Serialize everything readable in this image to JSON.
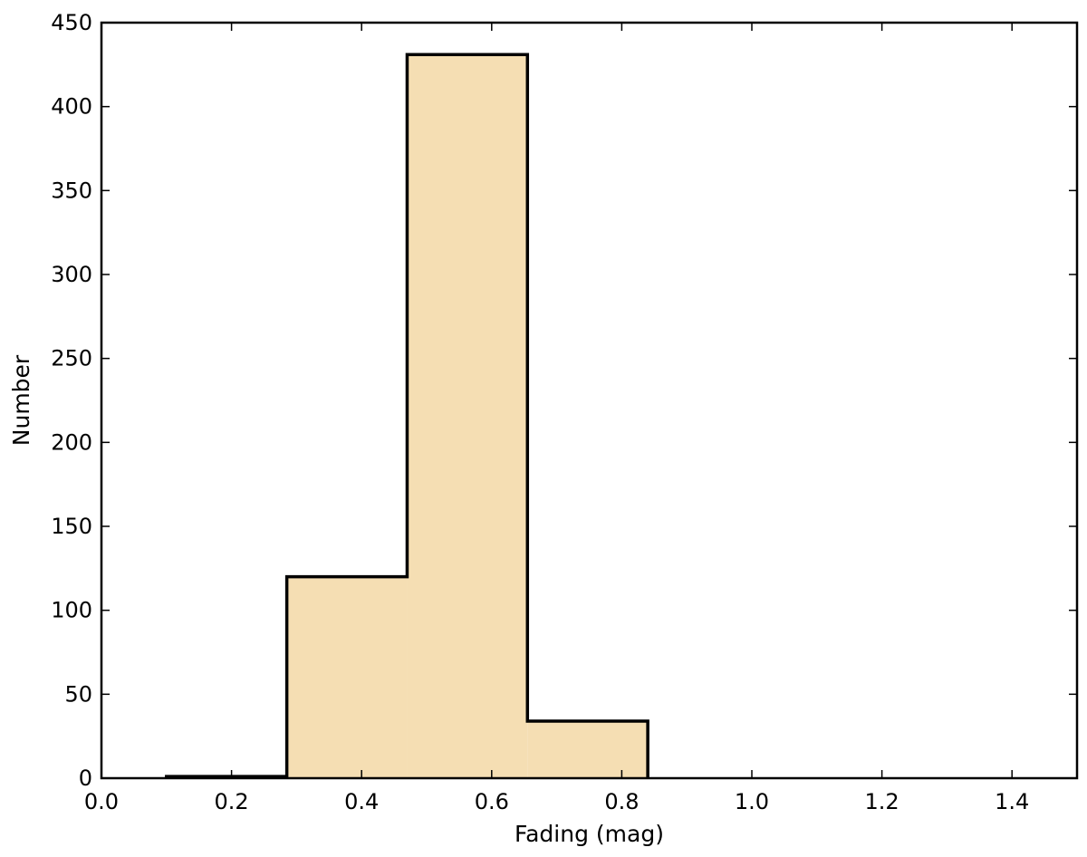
{
  "chart_data": {
    "type": "bar",
    "title": "",
    "xlabel": "Fading (mag)",
    "ylabel": "Number",
    "xlim": [
      0.0,
      1.5
    ],
    "ylim": [
      0,
      450
    ],
    "xticks": [
      "0.0",
      "0.2",
      "0.4",
      "0.6",
      "0.8",
      "1.0",
      "1.2",
      "1.4"
    ],
    "yticks": [
      "0",
      "50",
      "100",
      "150",
      "200",
      "250",
      "300",
      "350",
      "400",
      "450"
    ],
    "bin_edges": [
      0.1,
      0.285,
      0.47,
      0.655,
      0.84
    ],
    "values": [
      1,
      120,
      431,
      34
    ],
    "grid": false,
    "legend": "none",
    "colors": {
      "fill": "#f5deb3",
      "edge": "#000000"
    }
  }
}
